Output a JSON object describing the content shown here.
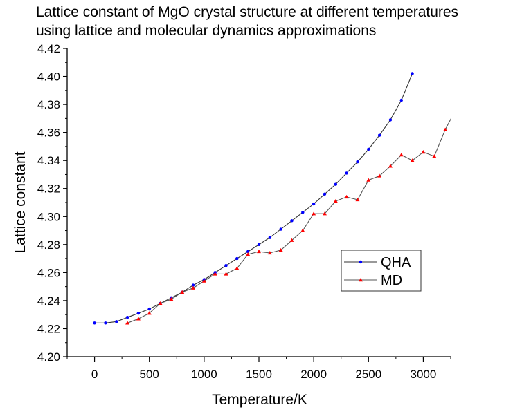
{
  "chart_data": {
    "type": "line",
    "title_lines": [
      "Lattice constant of MgO crystal structure at different temperatures",
      "using lattice and molecular dynamics approximations"
    ],
    "xlabel": "Temperature/K",
    "ylabel": "Lattice constant",
    "xlim": [
      -250,
      3250
    ],
    "ylim": [
      4.2,
      4.42
    ],
    "xticks": [
      0,
      500,
      1000,
      1500,
      2000,
      2500,
      3000
    ],
    "xtick_labels": [
      "0",
      "500",
      "1000",
      "1500",
      "2000",
      "2500",
      "3000"
    ],
    "xminor_step": 250,
    "yticks": [
      4.2,
      4.22,
      4.24,
      4.26,
      4.28,
      4.3,
      4.32,
      4.34,
      4.36,
      4.38,
      4.4,
      4.42
    ],
    "ytick_labels": [
      "4.20",
      "4.22",
      "4.24",
      "4.26",
      "4.28",
      "4.30",
      "4.32",
      "4.34",
      "4.36",
      "4.38",
      "4.40",
      "4.42"
    ],
    "yminor_step": 0.01,
    "grid": false,
    "legend_position": "center-right",
    "series": [
      {
        "name": "QHA",
        "marker": "circle",
        "marker_color": "#0000ff",
        "line_color": "#333333",
        "x": [
          0,
          100,
          200,
          300,
          400,
          500,
          600,
          700,
          800,
          900,
          1000,
          1100,
          1200,
          1300,
          1400,
          1500,
          1600,
          1700,
          1800,
          1900,
          2000,
          2100,
          2200,
          2300,
          2400,
          2500,
          2600,
          2700,
          2800,
          2900
        ],
        "y": [
          4.224,
          4.224,
          4.225,
          4.228,
          4.231,
          4.234,
          4.238,
          4.242,
          4.246,
          4.251,
          4.255,
          4.26,
          4.265,
          4.27,
          4.275,
          4.28,
          4.285,
          4.291,
          4.297,
          4.303,
          4.309,
          4.316,
          4.323,
          4.331,
          4.339,
          4.348,
          4.358,
          4.369,
          4.383,
          4.402
        ]
      },
      {
        "name": "MD",
        "marker": "triangle",
        "marker_color": "#ff0000",
        "line_color": "#555555",
        "x": [
          300,
          400,
          500,
          600,
          700,
          800,
          900,
          1000,
          1100,
          1200,
          1300,
          1400,
          1500,
          1600,
          1700,
          1800,
          1900,
          2000,
          2100,
          2200,
          2300,
          2400,
          2500,
          2600,
          2700,
          2800,
          2900,
          3000,
          3100,
          3200,
          3300
        ],
        "y": [
          4.224,
          4.227,
          4.231,
          4.238,
          4.241,
          4.246,
          4.249,
          4.254,
          4.259,
          4.259,
          4.263,
          4.273,
          4.275,
          4.274,
          4.276,
          4.283,
          4.29,
          4.302,
          4.302,
          4.311,
          4.314,
          4.312,
          4.326,
          4.329,
          4.336,
          4.344,
          4.34,
          4.346,
          4.343,
          4.362,
          4.377
        ]
      }
    ]
  }
}
